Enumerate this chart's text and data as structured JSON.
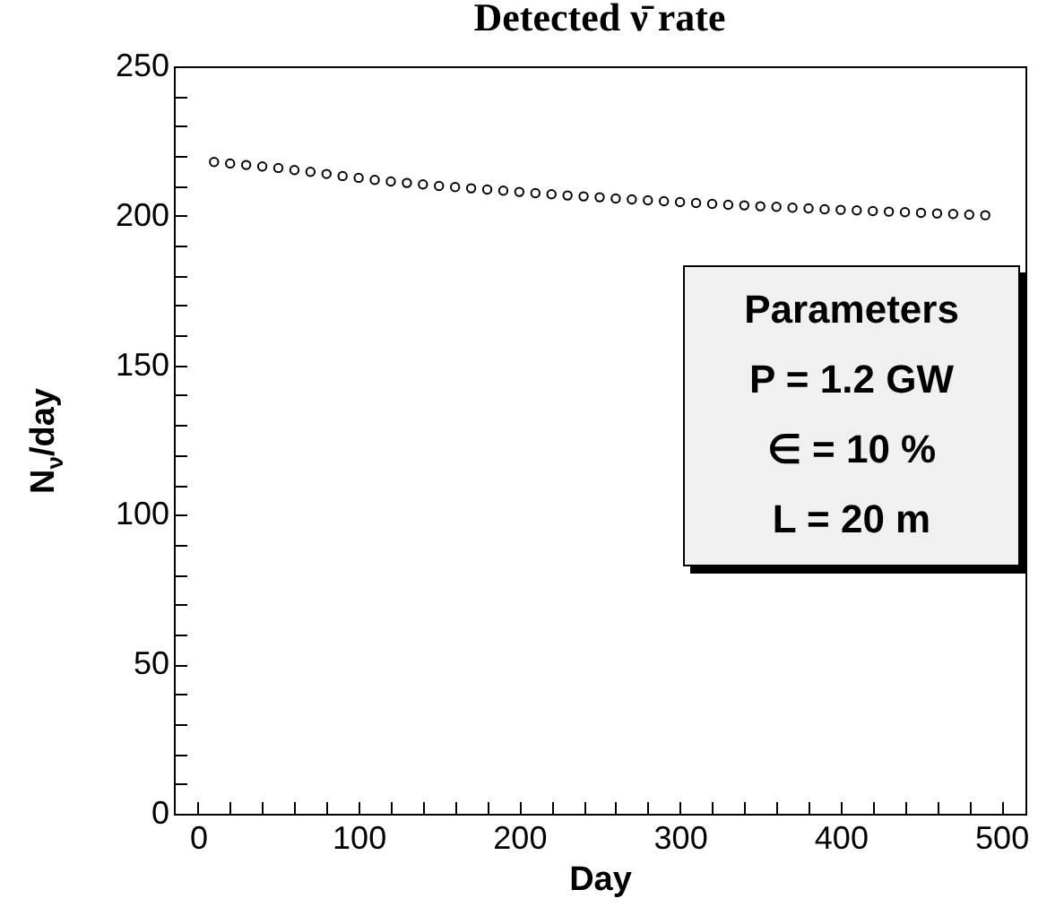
{
  "chart_data": {
    "type": "scatter",
    "title": "Detected  ν̄ rate",
    "xlabel": "Day",
    "ylabel": "N$_{ν}$/day",
    "annotations": [
      "Parameters",
      "P = 1.2 GW",
      "∈ = 10 %",
      "L = 20 m"
    ],
    "x": [
      10,
      20,
      30,
      40,
      50,
      60,
      70,
      80,
      90,
      100,
      110,
      120,
      130,
      140,
      150,
      160,
      170,
      180,
      190,
      200,
      210,
      220,
      230,
      240,
      250,
      260,
      270,
      280,
      290,
      300,
      310,
      320,
      330,
      340,
      350,
      360,
      370,
      380,
      390,
      400,
      410,
      420,
      430,
      440,
      450,
      460,
      470,
      480,
      490
    ],
    "series": [
      {
        "color": "#000000",
        "values": [
          218,
          217.5,
          217,
          216.5,
          216,
          215.3,
          214.7,
          214,
          213.3,
          212.7,
          212,
          211.5,
          211,
          210.5,
          210,
          209.6,
          209.2,
          208.8,
          208.4,
          208,
          207.6,
          207.2,
          206.8,
          206.5,
          206.2,
          205.8,
          205.5,
          205.2,
          204.9,
          204.6,
          204.3,
          204,
          203.7,
          203.5,
          203.2,
          203,
          202.7,
          202.5,
          202.2,
          202,
          201.8,
          201.6,
          201.4,
          201.2,
          201,
          200.8,
          200.6,
          200.4,
          200.2
        ]
      }
    ],
    "marker": "circle",
    "xlim": [
      -15,
      515
    ],
    "xticks": [
      0,
      {
        "value": 20,
        "label": null
      },
      {
        "value": 40,
        "label": null
      },
      {
        "value": 60,
        "label": null
      },
      {
        "value": 80,
        "label": null
      },
      100,
      {
        "value": 120,
        "label": null
      },
      {
        "value": 140,
        "label": null
      },
      {
        "value": 160,
        "label": null
      },
      {
        "value": 180,
        "label": null
      },
      200,
      {
        "value": 220,
        "label": null
      },
      {
        "value": 240,
        "label": null
      },
      {
        "value": 260,
        "label": null
      },
      {
        "value": 280,
        "label": null
      },
      300,
      {
        "value": 320,
        "label": null
      },
      {
        "value": 340,
        "label": null
      },
      {
        "value": 360,
        "label": null
      },
      {
        "value": 380,
        "label": null
      },
      400,
      {
        "value": 420,
        "label": null
      },
      {
        "value": 440,
        "label": null
      },
      {
        "value": 460,
        "label": null
      },
      {
        "value": 480,
        "label": null
      },
      500
    ],
    "ylim": [
      0,
      250
    ],
    "yticks": [
      0,
      {
        "value": 10,
        "label": null
      },
      {
        "value": 20,
        "label": null
      },
      {
        "value": 30,
        "label": null
      },
      {
        "value": 40,
        "label": null
      },
      50,
      {
        "value": 60,
        "label": null
      },
      {
        "value": 70,
        "label": null
      },
      {
        "value": 80,
        "label": null
      },
      {
        "value": 90,
        "label": null
      },
      100,
      {
        "value": 110,
        "label": null
      },
      {
        "value": 120,
        "label": null
      },
      {
        "value": 130,
        "label": null
      },
      {
        "value": 140,
        "label": null
      },
      150,
      {
        "value": 160,
        "label": null
      },
      {
        "value": 170,
        "label": null
      },
      {
        "value": 180,
        "label": null
      },
      {
        "value": 190,
        "label": null
      },
      200,
      {
        "value": 210,
        "label": null
      },
      {
        "value": 220,
        "label": null
      },
      {
        "value": 230,
        "label": null
      },
      {
        "value": 240,
        "label": null
      },
      250
    ],
    "grid": false
  }
}
